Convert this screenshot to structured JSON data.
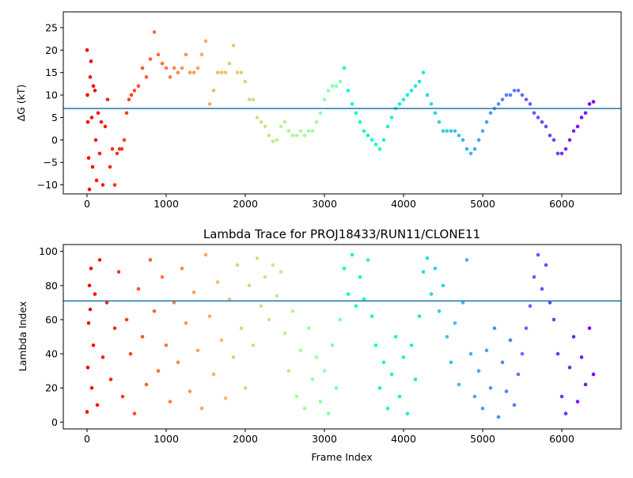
{
  "chart_data": [
    {
      "type": "scatter",
      "title": "",
      "xlabel": "",
      "ylabel": "ΔG (kT)",
      "xlim": [
        -300,
        6750
      ],
      "ylim": [
        -12,
        28.5
      ],
      "xticks": [
        0,
        1000,
        2000,
        3000,
        4000,
        5000,
        6000
      ],
      "yticks": [
        -10,
        -5,
        0,
        5,
        10,
        15,
        20,
        25
      ],
      "colormap": "rainbow (red at frame 0 → purple at frame 6400)",
      "hline": 7,
      "hline_color": "#1f77b4",
      "grid": false,
      "legend": "none",
      "points": [
        [
          0,
          20
        ],
        [
          5,
          10
        ],
        [
          10,
          4
        ],
        [
          20,
          -4
        ],
        [
          30,
          -11
        ],
        [
          40,
          14
        ],
        [
          50,
          17.5
        ],
        [
          60,
          5
        ],
        [
          70,
          -6
        ],
        [
          80,
          12
        ],
        [
          100,
          11
        ],
        [
          110,
          0
        ],
        [
          120,
          -9
        ],
        [
          140,
          6
        ],
        [
          160,
          -3
        ],
        [
          180,
          4
        ],
        [
          200,
          -10
        ],
        [
          230,
          3
        ],
        [
          260,
          9
        ],
        [
          290,
          -6
        ],
        [
          320,
          -2
        ],
        [
          350,
          -10
        ],
        [
          380,
          -3
        ],
        [
          410,
          -2
        ],
        [
          440,
          -2
        ],
        [
          470,
          0
        ],
        [
          500,
          6
        ],
        [
          530,
          9
        ],
        [
          560,
          10
        ],
        [
          600,
          11
        ],
        [
          650,
          12
        ],
        [
          700,
          16
        ],
        [
          750,
          14
        ],
        [
          800,
          18
        ],
        [
          850,
          24
        ],
        [
          900,
          19
        ],
        [
          950,
          17
        ],
        [
          1000,
          16
        ],
        [
          1050,
          14
        ],
        [
          1100,
          16
        ],
        [
          1150,
          15
        ],
        [
          1200,
          16
        ],
        [
          1250,
          19
        ],
        [
          1300,
          15
        ],
        [
          1350,
          15
        ],
        [
          1400,
          16
        ],
        [
          1450,
          19
        ],
        [
          1500,
          22
        ],
        [
          1550,
          8
        ],
        [
          1600,
          11
        ],
        [
          1650,
          15
        ],
        [
          1700,
          15
        ],
        [
          1750,
          15
        ],
        [
          1800,
          17
        ],
        [
          1850,
          21
        ],
        [
          1900,
          15
        ],
        [
          1950,
          15
        ],
        [
          2000,
          13
        ],
        [
          2050,
          9
        ],
        [
          2100,
          9
        ],
        [
          2150,
          5
        ],
        [
          2200,
          4
        ],
        [
          2250,
          3
        ],
        [
          2300,
          1
        ],
        [
          2350,
          -0.3
        ],
        [
          2400,
          0
        ],
        [
          2450,
          3
        ],
        [
          2500,
          4
        ],
        [
          2550,
          2
        ],
        [
          2600,
          1
        ],
        [
          2650,
          1
        ],
        [
          2700,
          2
        ],
        [
          2750,
          1
        ],
        [
          2800,
          2
        ],
        [
          2850,
          2
        ],
        [
          2900,
          4
        ],
        [
          2950,
          6
        ],
        [
          3000,
          9
        ],
        [
          3050,
          11
        ],
        [
          3100,
          12
        ],
        [
          3150,
          12
        ],
        [
          3200,
          13
        ],
        [
          3250,
          16
        ],
        [
          3300,
          11
        ],
        [
          3350,
          8
        ],
        [
          3400,
          6
        ],
        [
          3450,
          4
        ],
        [
          3500,
          2
        ],
        [
          3550,
          1
        ],
        [
          3600,
          0
        ],
        [
          3650,
          -1
        ],
        [
          3700,
          -2
        ],
        [
          3750,
          0
        ],
        [
          3800,
          3
        ],
        [
          3850,
          5
        ],
        [
          3900,
          7
        ],
        [
          3950,
          8
        ],
        [
          4000,
          9
        ],
        [
          4050,
          10
        ],
        [
          4100,
          11
        ],
        [
          4150,
          12
        ],
        [
          4200,
          13
        ],
        [
          4250,
          15
        ],
        [
          4300,
          10
        ],
        [
          4350,
          8
        ],
        [
          4400,
          6
        ],
        [
          4450,
          4
        ],
        [
          4500,
          2
        ],
        [
          4550,
          2
        ],
        [
          4600,
          2
        ],
        [
          4650,
          2
        ],
        [
          4700,
          1
        ],
        [
          4750,
          0
        ],
        [
          4800,
          -2
        ],
        [
          4850,
          -3
        ],
        [
          4900,
          -2
        ],
        [
          4950,
          0
        ],
        [
          5000,
          2
        ],
        [
          5050,
          4
        ],
        [
          5100,
          6
        ],
        [
          5150,
          7
        ],
        [
          5200,
          8
        ],
        [
          5250,
          9
        ],
        [
          5300,
          10
        ],
        [
          5350,
          10
        ],
        [
          5400,
          11
        ],
        [
          5450,
          11
        ],
        [
          5500,
          10
        ],
        [
          5550,
          9
        ],
        [
          5600,
          8
        ],
        [
          5650,
          6
        ],
        [
          5700,
          5
        ],
        [
          5750,
          4
        ],
        [
          5800,
          3
        ],
        [
          5850,
          1
        ],
        [
          5900,
          0
        ],
        [
          5950,
          -3
        ],
        [
          6000,
          -3
        ],
        [
          6050,
          -2
        ],
        [
          6100,
          0
        ],
        [
          6150,
          2
        ],
        [
          6200,
          3
        ],
        [
          6250,
          5
        ],
        [
          6300,
          6
        ],
        [
          6350,
          8
        ],
        [
          6400,
          8.5
        ]
      ]
    },
    {
      "type": "scatter",
      "title": "Lambda Trace for PROJ18433/RUN11/CLONE11",
      "xlabel": "Frame Index",
      "ylabel": "Lambda Index",
      "xlim": [
        -300,
        6750
      ],
      "ylim": [
        -4,
        104
      ],
      "xticks": [
        0,
        1000,
        2000,
        3000,
        4000,
        5000,
        6000
      ],
      "yticks": [
        0,
        20,
        40,
        60,
        80,
        100
      ],
      "colormap": "rainbow (red at frame 0 → purple at frame 6400)",
      "hline": 71,
      "hline_color": "#1f77b4",
      "grid": false,
      "legend": "none",
      "points": [
        [
          0,
          6
        ],
        [
          10,
          32
        ],
        [
          20,
          58
        ],
        [
          30,
          80
        ],
        [
          40,
          66
        ],
        [
          50,
          90
        ],
        [
          60,
          20
        ],
        [
          80,
          45
        ],
        [
          100,
          75
        ],
        [
          130,
          10
        ],
        [
          160,
          95
        ],
        [
          200,
          38
        ],
        [
          250,
          70
        ],
        [
          300,
          25
        ],
        [
          350,
          55
        ],
        [
          400,
          88
        ],
        [
          450,
          15
        ],
        [
          500,
          60
        ],
        [
          550,
          40
        ],
        [
          600,
          5
        ],
        [
          650,
          78
        ],
        [
          700,
          50
        ],
        [
          750,
          22
        ],
        [
          800,
          95
        ],
        [
          850,
          65
        ],
        [
          900,
          30
        ],
        [
          950,
          85
        ],
        [
          1000,
          45
        ],
        [
          1050,
          12
        ],
        [
          1100,
          70
        ],
        [
          1150,
          35
        ],
        [
          1200,
          90
        ],
        [
          1250,
          58
        ],
        [
          1300,
          18
        ],
        [
          1350,
          76
        ],
        [
          1400,
          42
        ],
        [
          1450,
          8
        ],
        [
          1500,
          98
        ],
        [
          1550,
          62
        ],
        [
          1600,
          28
        ],
        [
          1650,
          82
        ],
        [
          1700,
          48
        ],
        [
          1750,
          14
        ],
        [
          1800,
          72
        ],
        [
          1850,
          38
        ],
        [
          1900,
          92
        ],
        [
          1950,
          55
        ],
        [
          2000,
          20
        ],
        [
          2050,
          80
        ],
        [
          2100,
          45
        ],
        [
          2150,
          96
        ],
        [
          2200,
          68
        ],
        [
          2250,
          85
        ],
        [
          2300,
          60
        ],
        [
          2350,
          92
        ],
        [
          2400,
          74
        ],
        [
          2450,
          88
        ],
        [
          2500,
          52
        ],
        [
          2550,
          30
        ],
        [
          2600,
          65
        ],
        [
          2650,
          15
        ],
        [
          2700,
          42
        ],
        [
          2750,
          8
        ],
        [
          2800,
          55
        ],
        [
          2850,
          25
        ],
        [
          2900,
          38
        ],
        [
          2950,
          12
        ],
        [
          3000,
          30
        ],
        [
          3050,
          5
        ],
        [
          3100,
          45
        ],
        [
          3150,
          20
        ],
        [
          3200,
          60
        ],
        [
          3250,
          90
        ],
        [
          3300,
          75
        ],
        [
          3350,
          98
        ],
        [
          3400,
          68
        ],
        [
          3450,
          85
        ],
        [
          3500,
          72
        ],
        [
          3550,
          95
        ],
        [
          3600,
          62
        ],
        [
          3650,
          45
        ],
        [
          3700,
          20
        ],
        [
          3750,
          35
        ],
        [
          3800,
          8
        ],
        [
          3850,
          28
        ],
        [
          3900,
          50
        ],
        [
          3950,
          15
        ],
        [
          4000,
          38
        ],
        [
          4050,
          5
        ],
        [
          4100,
          45
        ],
        [
          4150,
          25
        ],
        [
          4200,
          62
        ],
        [
          4250,
          88
        ],
        [
          4300,
          96
        ],
        [
          4350,
          75
        ],
        [
          4400,
          90
        ],
        [
          4450,
          65
        ],
        [
          4500,
          80
        ],
        [
          4550,
          50
        ],
        [
          4600,
          35
        ],
        [
          4650,
          58
        ],
        [
          4700,
          22
        ],
        [
          4750,
          70
        ],
        [
          4800,
          95
        ],
        [
          4850,
          40
        ],
        [
          4900,
          15
        ],
        [
          4950,
          30
        ],
        [
          5000,
          8
        ],
        [
          5050,
          42
        ],
        [
          5100,
          20
        ],
        [
          5150,
          55
        ],
        [
          5200,
          3
        ],
        [
          5250,
          35
        ],
        [
          5300,
          18
        ],
        [
          5350,
          48
        ],
        [
          5400,
          10
        ],
        [
          5450,
          28
        ],
        [
          5500,
          40
        ],
        [
          5550,
          55
        ],
        [
          5600,
          68
        ],
        [
          5650,
          85
        ],
        [
          5700,
          98
        ],
        [
          5750,
          78
        ],
        [
          5800,
          92
        ],
        [
          5850,
          70
        ],
        [
          5900,
          60
        ],
        [
          5950,
          40
        ],
        [
          6000,
          15
        ],
        [
          6050,
          5
        ],
        [
          6100,
          32
        ],
        [
          6150,
          50
        ],
        [
          6200,
          12
        ],
        [
          6250,
          38
        ],
        [
          6300,
          22
        ],
        [
          6350,
          55
        ],
        [
          6400,
          28
        ]
      ]
    }
  ]
}
